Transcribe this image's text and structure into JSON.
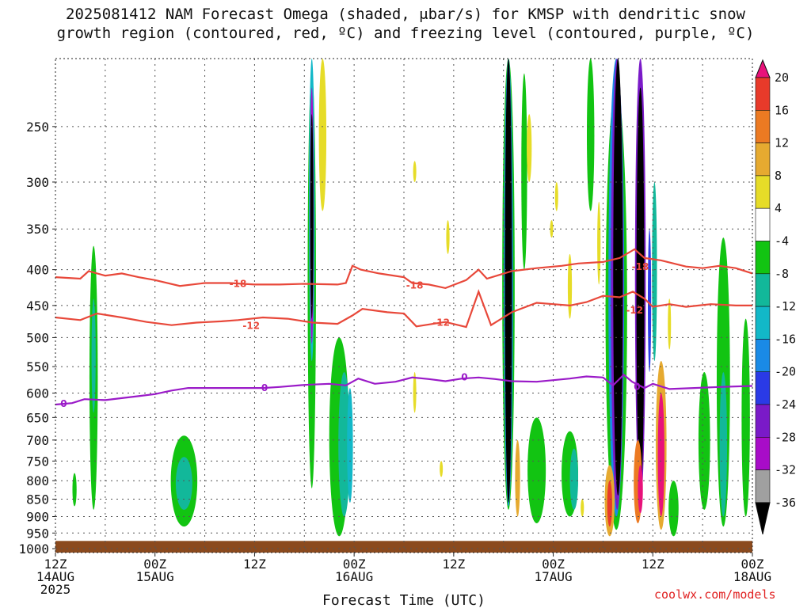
{
  "title_line1": "2025081412 NAM Forecast Omega (shaded, μbar/s) for KMSP with dendritic snow",
  "title_line2": "growth region (contoured, red, ºC) and freezing level (contoured, purple, ºC)",
  "credit": "coolwx.com/models",
  "colors": {
    "ground": "#8b4a1e",
    "dgz_contour": "#e8483a",
    "freezing_contour": "#9a1ac8",
    "grid": "#555555"
  },
  "chart_data": {
    "type": "heatmap",
    "xlabel": "Forecast Time (UTC)",
    "x_ticks": [
      {
        "hour": 0,
        "line1": "12Z",
        "line2": "14AUG",
        "line3": "2025"
      },
      {
        "hour": 12,
        "line1": "00Z",
        "line2": "15AUG",
        "line3": ""
      },
      {
        "hour": 24,
        "line1": "12Z",
        "line2": "",
        "line3": ""
      },
      {
        "hour": 36,
        "line1": "00Z",
        "line2": "16AUG",
        "line3": ""
      },
      {
        "hour": 48,
        "line1": "12Z",
        "line2": "",
        "line3": ""
      },
      {
        "hour": 60,
        "line1": "00Z",
        "line2": "17AUG",
        "line3": ""
      },
      {
        "hour": 72,
        "line1": "12Z",
        "line2": "",
        "line3": ""
      },
      {
        "hour": 84,
        "line1": "00Z",
        "line2": "18AUG",
        "line3": ""
      }
    ],
    "y_ticks": [
      250,
      300,
      350,
      400,
      450,
      500,
      550,
      600,
      650,
      700,
      750,
      800,
      850,
      900,
      950,
      1000
    ],
    "ylim": [
      200,
      1013
    ],
    "y_scale": "log-pressure (inverted)",
    "xlim": [
      0,
      84
    ],
    "grid": true,
    "colorbar": {
      "ticks": [
        20,
        16,
        12,
        8,
        4,
        -4,
        -8,
        -12,
        -16,
        -20,
        -24,
        -28,
        -32,
        -36
      ],
      "bins": [
        {
          "from": 20,
          "to": 24,
          "color": "#e8127a"
        },
        {
          "from": 16,
          "to": 20,
          "color": "#e83a2a"
        },
        {
          "from": 12,
          "to": 16,
          "color": "#ec7a22"
        },
        {
          "from": 8,
          "to": 12,
          "color": "#e6aa30"
        },
        {
          "from": 4,
          "to": 8,
          "color": "#e6dc28"
        },
        {
          "from": -4,
          "to": 4,
          "color": "#ffffff"
        },
        {
          "from": -8,
          "to": -4,
          "color": "#12c412"
        },
        {
          "from": -12,
          "to": -8,
          "color": "#12b89a"
        },
        {
          "from": -16,
          "to": -12,
          "color": "#12b8c8"
        },
        {
          "from": -20,
          "to": -16,
          "color": "#1a8ae6"
        },
        {
          "from": -24,
          "to": -20,
          "color": "#2a3ae6"
        },
        {
          "from": -28,
          "to": -24,
          "color": "#7a1ac8"
        },
        {
          "from": -32,
          "to": -28,
          "color": "#a80cc8"
        },
        {
          "from": -36,
          "to": -32,
          "color": "#a0a0a0"
        },
        {
          "from": -40,
          "to": -36,
          "color": "#000000"
        }
      ]
    },
    "contours": [
      {
        "name": "-18",
        "level": -18,
        "color": "#e8483a",
        "label": "-18",
        "points": [
          [
            0,
            410
          ],
          [
            3,
            412
          ],
          [
            4,
            402
          ],
          [
            6,
            408
          ],
          [
            8,
            405
          ],
          [
            10,
            410
          ],
          [
            12,
            414
          ],
          [
            15,
            422
          ],
          [
            18,
            418
          ],
          [
            21,
            418
          ],
          [
            24,
            420
          ],
          [
            27,
            420
          ],
          [
            30,
            419
          ],
          [
            34,
            420
          ],
          [
            35,
            418
          ],
          [
            35.8,
            395
          ],
          [
            36.8,
            400
          ],
          [
            39,
            405
          ],
          [
            42,
            410
          ],
          [
            43,
            418
          ],
          [
            45,
            420
          ],
          [
            47,
            425
          ],
          [
            49.5,
            414
          ],
          [
            51,
            400
          ],
          [
            52,
            412
          ],
          [
            55,
            402
          ],
          [
            58,
            398
          ],
          [
            61,
            395
          ],
          [
            63,
            392
          ],
          [
            66,
            390
          ],
          [
            68,
            385
          ],
          [
            69.8,
            374
          ],
          [
            71,
            385
          ],
          [
            73,
            388
          ],
          [
            76,
            396
          ],
          [
            78,
            398
          ],
          [
            80,
            395
          ],
          [
            82,
            398
          ],
          [
            84,
            405
          ]
        ],
        "label_at": [
          [
            22,
            418
          ],
          [
            43.3,
            420
          ],
          [
            70.5,
            395
          ]
        ]
      },
      {
        "name": "-12",
        "level": -12,
        "color": "#e8483a",
        "label": "-12",
        "points": [
          [
            0,
            468
          ],
          [
            3,
            472
          ],
          [
            5,
            462
          ],
          [
            8,
            468
          ],
          [
            11,
            475
          ],
          [
            14,
            480
          ],
          [
            17,
            476
          ],
          [
            20,
            474
          ],
          [
            22,
            472
          ],
          [
            25,
            468
          ],
          [
            28,
            470
          ],
          [
            31,
            476
          ],
          [
            34,
            478
          ],
          [
            35.8,
            465
          ],
          [
            37,
            455
          ],
          [
            40,
            460
          ],
          [
            42,
            462
          ],
          [
            43.5,
            482
          ],
          [
            45.5,
            478
          ],
          [
            47,
            475
          ],
          [
            49.5,
            483
          ],
          [
            51,
            430
          ],
          [
            52.5,
            480
          ],
          [
            55,
            460
          ],
          [
            58,
            446
          ],
          [
            60,
            448
          ],
          [
            62,
            450
          ],
          [
            64,
            445
          ],
          [
            66,
            436
          ],
          [
            68,
            438
          ],
          [
            69.6,
            430
          ],
          [
            71,
            440
          ],
          [
            72,
            452
          ],
          [
            74,
            448
          ],
          [
            76,
            452
          ],
          [
            79,
            448
          ],
          [
            82,
            450
          ],
          [
            84,
            450
          ]
        ],
        "label_at": [
          [
            23.6,
            480
          ],
          [
            46.5,
            475
          ],
          [
            69.8,
            456
          ]
        ]
      },
      {
        "name": "0",
        "level": 0,
        "color": "#9a1ac8",
        "label": "0",
        "points": [
          [
            0,
            623
          ],
          [
            2,
            620
          ],
          [
            3.5,
            612
          ],
          [
            6,
            614
          ],
          [
            8,
            610
          ],
          [
            10,
            606
          ],
          [
            12,
            602
          ],
          [
            14,
            595
          ],
          [
            16,
            590
          ],
          [
            19,
            590
          ],
          [
            22,
            590
          ],
          [
            25,
            590
          ],
          [
            27,
            588
          ],
          [
            30,
            584
          ],
          [
            33,
            582
          ],
          [
            35,
            585
          ],
          [
            36.5,
            572
          ],
          [
            38.5,
            582
          ],
          [
            41,
            578
          ],
          [
            43,
            570
          ],
          [
            45,
            573
          ],
          [
            47,
            577
          ],
          [
            49,
            572
          ],
          [
            51,
            570
          ],
          [
            53,
            573
          ],
          [
            55,
            577
          ],
          [
            58,
            578
          ],
          [
            60,
            575
          ],
          [
            62,
            572
          ],
          [
            64,
            568
          ],
          [
            66,
            570
          ],
          [
            67.2,
            585
          ],
          [
            68.5,
            565
          ],
          [
            69.5,
            578
          ],
          [
            71,
            590
          ],
          [
            72,
            582
          ],
          [
            74,
            592
          ],
          [
            77,
            590
          ],
          [
            80,
            588
          ],
          [
            84,
            586
          ]
        ],
        "label_at": [
          [
            1,
            620
          ],
          [
            25.2,
            588
          ],
          [
            49.3,
            568
          ],
          [
            70.1,
            586
          ]
        ]
      }
    ],
    "omega_blobs": [
      {
        "x": 4.6,
        "p_top": 370,
        "p_bot": 880,
        "w": 1.0,
        "v": -6
      },
      {
        "x": 4.6,
        "p_top": 440,
        "p_bot": 640,
        "w": 0.5,
        "v": -10
      },
      {
        "x": 2.3,
        "p_top": 780,
        "p_bot": 870,
        "w": 0.5,
        "v": -6
      },
      {
        "x": 15.5,
        "p_top": 690,
        "p_bot": 930,
        "w": 3.2,
        "v": -6
      },
      {
        "x": 15.5,
        "p_top": 740,
        "p_bot": 880,
        "w": 2.0,
        "v": -10
      },
      {
        "x": 30.9,
        "p_top": 210,
        "p_bot": 820,
        "w": 1.0,
        "v": -6
      },
      {
        "x": 30.9,
        "p_top": 200,
        "p_bot": 540,
        "w": 0.7,
        "v": -14
      },
      {
        "x": 30.9,
        "p_top": 220,
        "p_bot": 510,
        "w": 0.45,
        "v": -30
      },
      {
        "x": 30.9,
        "p_top": 240,
        "p_bot": 470,
        "w": 0.3,
        "v": -38
      },
      {
        "x": 32.2,
        "p_top": 200,
        "p_bot": 330,
        "w": 0.9,
        "v": 6
      },
      {
        "x": 34.2,
        "p_top": 500,
        "p_bot": 960,
        "w": 2.4,
        "v": -6
      },
      {
        "x": 34.8,
        "p_top": 560,
        "p_bot": 900,
        "w": 1.4,
        "v": -10
      },
      {
        "x": 35.5,
        "p_top": 590,
        "p_bot": 860,
        "w": 0.7,
        "v": -16
      },
      {
        "x": 43.3,
        "p_top": 280,
        "p_bot": 300,
        "w": 0.3,
        "v": 6
      },
      {
        "x": 43.3,
        "p_top": 560,
        "p_bot": 640,
        "w": 0.2,
        "v": 6
      },
      {
        "x": 47.3,
        "p_top": 340,
        "p_bot": 380,
        "w": 0.4,
        "v": 6
      },
      {
        "x": 46.5,
        "p_top": 750,
        "p_bot": 790,
        "w": 0.3,
        "v": 6
      },
      {
        "x": 54.6,
        "p_top": 200,
        "p_bot": 880,
        "w": 1.5,
        "v": -6
      },
      {
        "x": 54.6,
        "p_top": 200,
        "p_bot": 870,
        "w": 1.1,
        "v": -20
      },
      {
        "x": 54.6,
        "p_top": 200,
        "p_bot": 860,
        "w": 0.85,
        "v": -38
      },
      {
        "x": 56.5,
        "p_top": 210,
        "p_bot": 400,
        "w": 0.7,
        "v": -6
      },
      {
        "x": 57.1,
        "p_top": 240,
        "p_bot": 300,
        "w": 0.6,
        "v": 6
      },
      {
        "x": 55.7,
        "p_top": 700,
        "p_bot": 900,
        "w": 0.6,
        "v": 10
      },
      {
        "x": 58.0,
        "p_top": 650,
        "p_bot": 920,
        "w": 2.2,
        "v": -6
      },
      {
        "x": 59.8,
        "p_top": 340,
        "p_bot": 360,
        "w": 0.3,
        "v": 6
      },
      {
        "x": 60.4,
        "p_top": 300,
        "p_bot": 330,
        "w": 0.3,
        "v": 6
      },
      {
        "x": 62.0,
        "p_top": 680,
        "p_bot": 900,
        "w": 2.0,
        "v": -6
      },
      {
        "x": 62.5,
        "p_top": 720,
        "p_bot": 880,
        "w": 1.0,
        "v": -10
      },
      {
        "x": 64.5,
        "p_top": 200,
        "p_bot": 330,
        "w": 0.9,
        "v": -6
      },
      {
        "x": 62.0,
        "p_top": 380,
        "p_bot": 470,
        "w": 0.5,
        "v": 6
      },
      {
        "x": 65.5,
        "p_top": 320,
        "p_bot": 420,
        "w": 0.4,
        "v": 6
      },
      {
        "x": 63.5,
        "p_top": 850,
        "p_bot": 900,
        "w": 0.4,
        "v": 6
      },
      {
        "x": 67.6,
        "p_top": 220,
        "p_bot": 940,
        "w": 2.6,
        "v": -6
      },
      {
        "x": 67.6,
        "p_top": 200,
        "p_bot": 900,
        "w": 1.9,
        "v": -20
      },
      {
        "x": 67.7,
        "p_top": 200,
        "p_bot": 880,
        "w": 1.5,
        "v": -28
      },
      {
        "x": 67.8,
        "p_top": 200,
        "p_bot": 840,
        "w": 1.15,
        "v": -38
      },
      {
        "x": 70.5,
        "p_top": 200,
        "p_bot": 860,
        "w": 1.3,
        "v": -28
      },
      {
        "x": 70.5,
        "p_top": 220,
        "p_bot": 830,
        "w": 0.95,
        "v": -38
      },
      {
        "x": 66.8,
        "p_top": 760,
        "p_bot": 960,
        "w": 1.2,
        "v": 10
      },
      {
        "x": 66.8,
        "p_top": 800,
        "p_bot": 930,
        "w": 0.6,
        "v": 18
      },
      {
        "x": 70.2,
        "p_top": 700,
        "p_bot": 920,
        "w": 1.0,
        "v": 14
      },
      {
        "x": 70.5,
        "p_top": 760,
        "p_bot": 890,
        "w": 0.6,
        "v": 22
      },
      {
        "x": 73.0,
        "p_top": 540,
        "p_bot": 940,
        "w": 1.3,
        "v": 10
      },
      {
        "x": 73.0,
        "p_top": 600,
        "p_bot": 900,
        "w": 0.8,
        "v": 22
      },
      {
        "x": 72.2,
        "p_top": 300,
        "p_bot": 540,
        "w": 0.6,
        "v": -10
      },
      {
        "x": 71.6,
        "p_top": 350,
        "p_bot": 560,
        "w": 0.4,
        "v": -22
      },
      {
        "x": 74.5,
        "p_top": 800,
        "p_bot": 960,
        "w": 1.2,
        "v": -6
      },
      {
        "x": 74.0,
        "p_top": 440,
        "p_bot": 520,
        "w": 0.3,
        "v": 6
      },
      {
        "x": 80.5,
        "p_top": 360,
        "p_bot": 930,
        "w": 1.6,
        "v": -6
      },
      {
        "x": 80.5,
        "p_top": 560,
        "p_bot": 900,
        "w": 0.9,
        "v": -10
      },
      {
        "x": 78.2,
        "p_top": 560,
        "p_bot": 880,
        "w": 1.4,
        "v": -6
      },
      {
        "x": 83.2,
        "p_top": 470,
        "p_bot": 900,
        "w": 1.0,
        "v": -6
      }
    ]
  }
}
